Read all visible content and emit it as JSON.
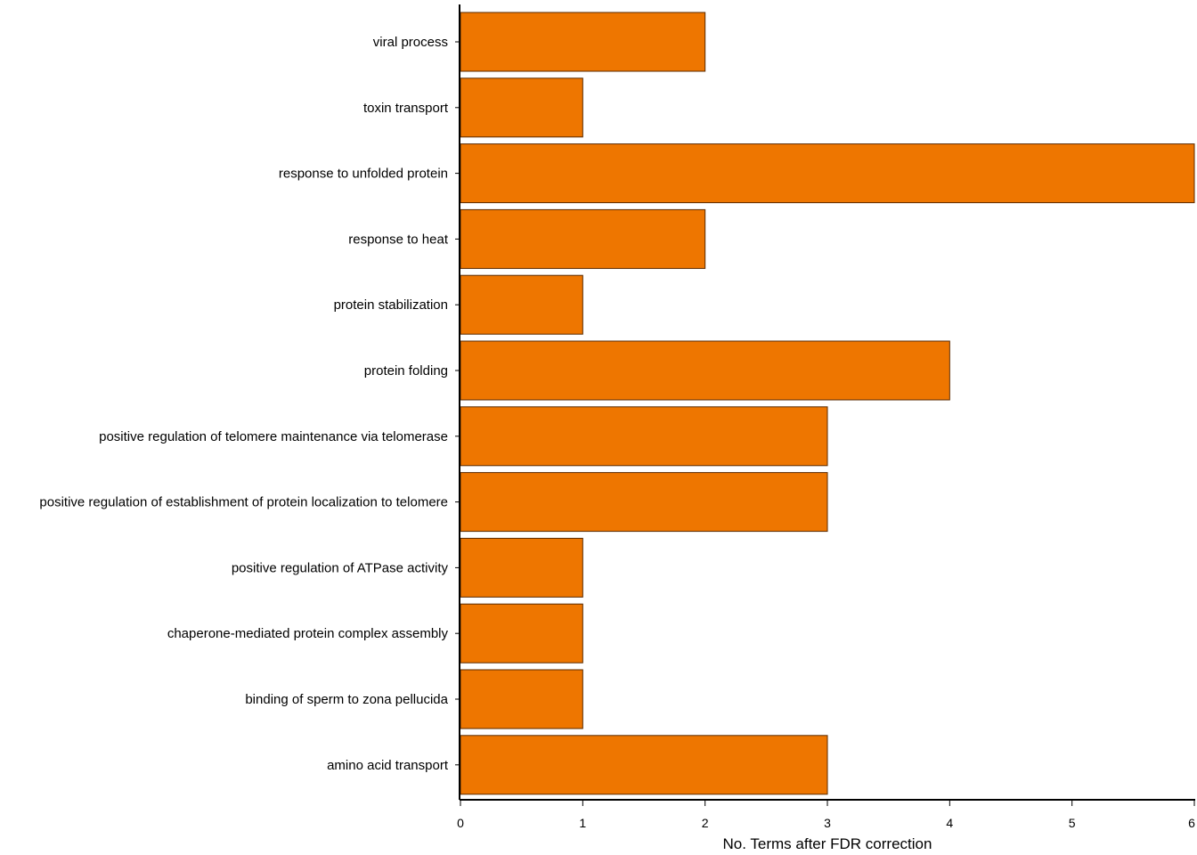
{
  "chart_data": {
    "type": "bar",
    "orientation": "horizontal",
    "categories": [
      "viral process",
      "toxin transport",
      "response to unfolded protein",
      "response to heat",
      "protein stabilization",
      "protein folding",
      "positive regulation of telomere maintenance via telomerase",
      "positive regulation of establishment of protein localization to telomere",
      "positive regulation of ATPase activity",
      "chaperone-mediated protein complex assembly",
      "binding of sperm to zona pellucida",
      "amino acid transport"
    ],
    "values": [
      2,
      1,
      6,
      2,
      1,
      4,
      3,
      3,
      1,
      1,
      1,
      3
    ],
    "title": "",
    "xlabel": "No. Terms after FDR correction",
    "ylabel": "",
    "xlim": [
      0,
      6
    ],
    "xticks": [
      "0",
      "1",
      "2",
      "3",
      "4",
      "5",
      "6"
    ],
    "grid": false,
    "legend": "none",
    "bar_color": "#ee7600",
    "bar_edge_color": "#5a2a00"
  }
}
